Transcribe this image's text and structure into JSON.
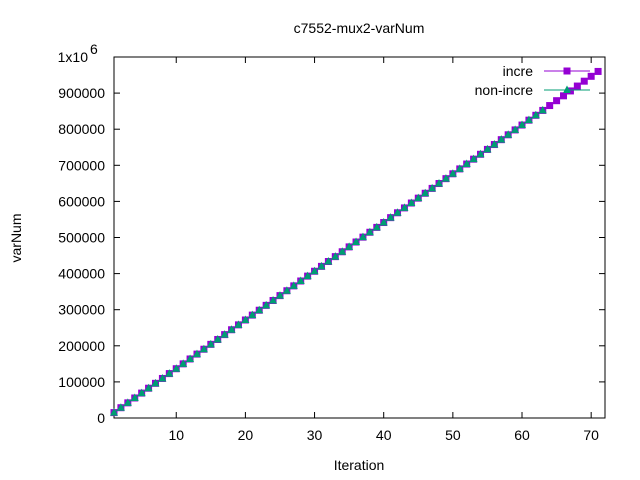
{
  "chart_data": {
    "type": "line",
    "title": "c7552-mux2-varNum",
    "xlabel": "Iteration",
    "ylabel": "varNum",
    "xlim": [
      1,
      72
    ],
    "ylim": [
      0,
      1000000
    ],
    "grid": false,
    "legend_position": "top-right",
    "x_ticks": [
      10,
      20,
      30,
      40,
      50,
      60,
      70
    ],
    "y_ticks": [
      {
        "value": 0,
        "label": "0"
      },
      {
        "value": 100000,
        "label": "100000"
      },
      {
        "value": 200000,
        "label": "200000"
      },
      {
        "value": 300000,
        "label": "300000"
      },
      {
        "value": 400000,
        "label": "400000"
      },
      {
        "value": 500000,
        "label": "500000"
      },
      {
        "value": 600000,
        "label": "600000"
      },
      {
        "value": 700000,
        "label": "700000"
      },
      {
        "value": 800000,
        "label": "800000"
      },
      {
        "value": 900000,
        "label": "900000"
      },
      {
        "value": 1000000,
        "label": "1x10",
        "exponent": "6"
      }
    ],
    "series": [
      {
        "name": "incre",
        "color": "#9400d3",
        "marker": "square",
        "x": [
          1,
          2,
          3,
          4,
          5,
          6,
          7,
          8,
          9,
          10,
          11,
          12,
          13,
          14,
          15,
          16,
          17,
          18,
          19,
          20,
          21,
          22,
          23,
          24,
          25,
          26,
          27,
          28,
          29,
          30,
          31,
          32,
          33,
          34,
          35,
          36,
          37,
          38,
          39,
          40,
          41,
          42,
          43,
          44,
          45,
          46,
          47,
          48,
          49,
          50,
          51,
          52,
          53,
          54,
          55,
          56,
          57,
          58,
          59,
          60,
          61,
          62,
          63,
          64,
          65,
          66,
          67,
          68,
          69,
          70,
          71
        ],
        "y": [
          15000,
          28500,
          42000,
          55500,
          69000,
          82500,
          96000,
          109500,
          123000,
          136500,
          150000,
          163500,
          177000,
          190500,
          204000,
          217500,
          231000,
          244500,
          258000,
          271500,
          285000,
          298500,
          312000,
          325500,
          339000,
          352500,
          366000,
          379500,
          393000,
          406500,
          420000,
          433500,
          447000,
          460500,
          474000,
          487500,
          501000,
          514500,
          528000,
          541500,
          555000,
          568500,
          582000,
          595500,
          609000,
          622500,
          636000,
          649500,
          663000,
          676500,
          690000,
          703500,
          717000,
          730500,
          744000,
          757500,
          771000,
          784500,
          798000,
          811500,
          825000,
          838500,
          852000,
          865500,
          879000,
          892500,
          906000,
          919500,
          933000,
          946500,
          960000
        ]
      },
      {
        "name": "non-incre",
        "color": "#009e73",
        "marker": "triangle",
        "x": [
          1,
          2,
          3,
          4,
          5,
          6,
          7,
          8,
          9,
          10,
          11,
          12,
          13,
          14,
          15,
          16,
          17,
          18,
          19,
          20,
          21,
          22,
          23,
          24,
          25,
          26,
          27,
          28,
          29,
          30,
          31,
          32,
          33,
          34,
          35,
          36,
          37,
          38,
          39,
          40,
          41,
          42,
          43,
          44,
          45,
          46,
          47,
          48,
          49,
          50,
          51,
          52,
          53,
          54,
          55,
          56,
          57,
          58,
          59,
          60,
          61,
          62,
          63
        ],
        "y": [
          15000,
          28500,
          42000,
          55500,
          69000,
          82500,
          96000,
          109500,
          123000,
          136500,
          150000,
          163500,
          177000,
          190500,
          204000,
          217500,
          231000,
          244500,
          258000,
          271500,
          285000,
          298500,
          312000,
          325500,
          339000,
          352500,
          366000,
          379500,
          393000,
          406500,
          420000,
          433500,
          447000,
          460500,
          474000,
          487500,
          501000,
          514500,
          528000,
          541500,
          555000,
          568500,
          582000,
          595500,
          609000,
          622500,
          636000,
          649500,
          663000,
          676500,
          690000,
          703500,
          717000,
          730500,
          744000,
          757500,
          771000,
          784500,
          798000,
          811500,
          825000,
          838500,
          852000
        ]
      }
    ]
  }
}
